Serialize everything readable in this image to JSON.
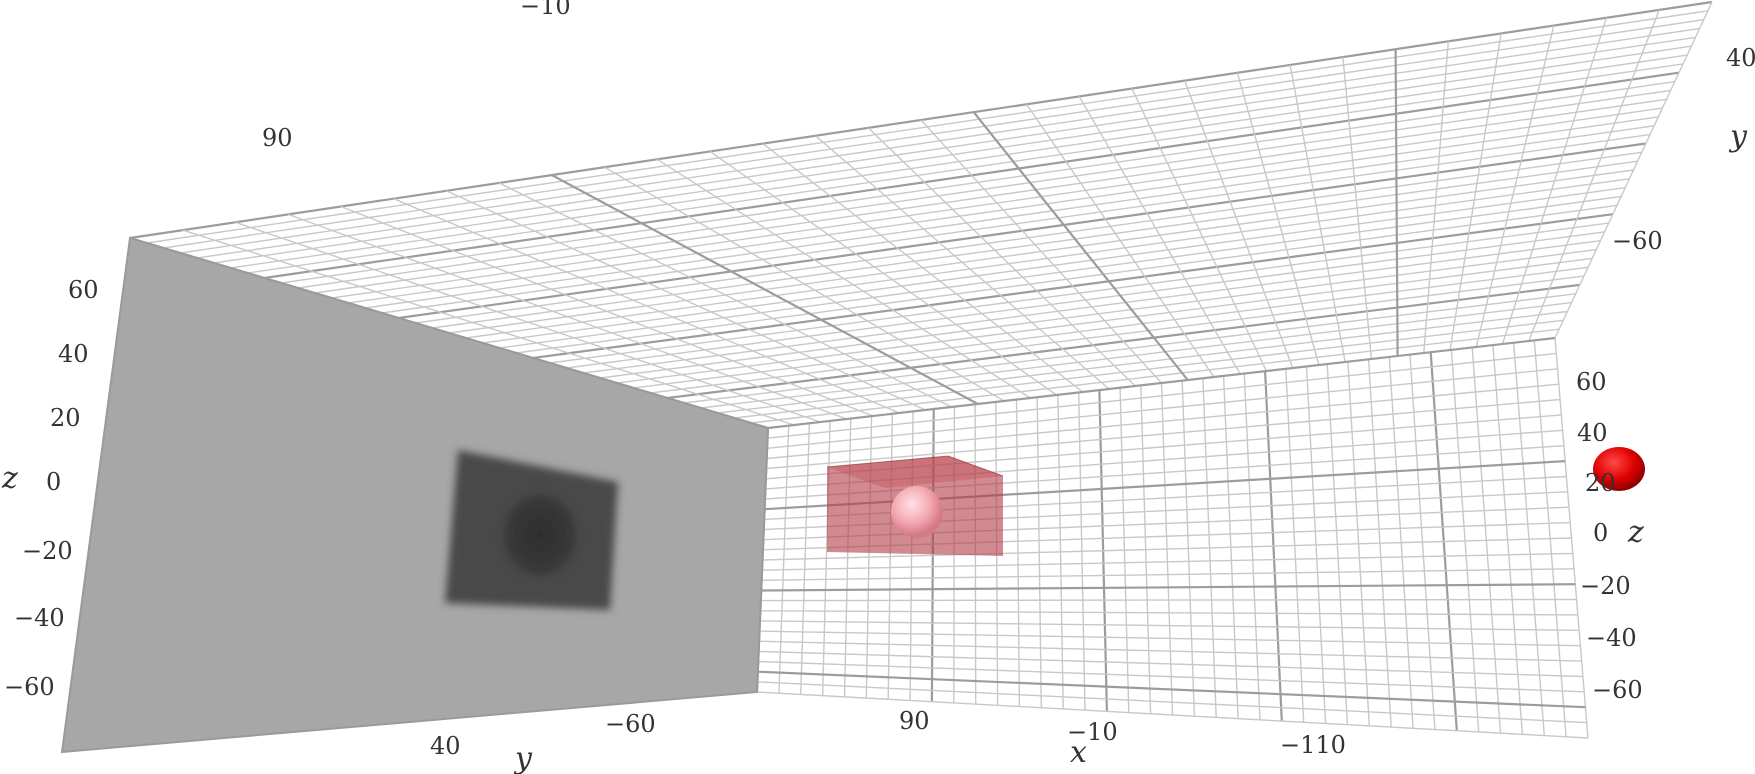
{
  "chart_data": {
    "type": "scatter3d",
    "axes": {
      "x": {
        "label": "x",
        "ticks": [
          "90",
          "−10",
          "−110"
        ]
      },
      "y": {
        "label": "y",
        "ticks_top": [
          "−10",
          "90"
        ],
        "ticks_right": [
          "40",
          "−60"
        ],
        "ticks_bottom": [
          "40",
          "−60"
        ]
      },
      "z": {
        "label": "z",
        "ticks": [
          "60",
          "40",
          "20",
          "0",
          "−20",
          "−40",
          "−60"
        ]
      }
    },
    "objects": [
      {
        "name": "box",
        "color": "#b03c46",
        "opacity": 0.6
      },
      {
        "name": "sphere-inside-box",
        "color": "#f4a8b0"
      },
      {
        "name": "red-sphere-outside",
        "color": "#e00000"
      }
    ],
    "floor_color": "#a7a7a7",
    "grid_color": "#c8c8c8",
    "background": "#ffffff"
  }
}
